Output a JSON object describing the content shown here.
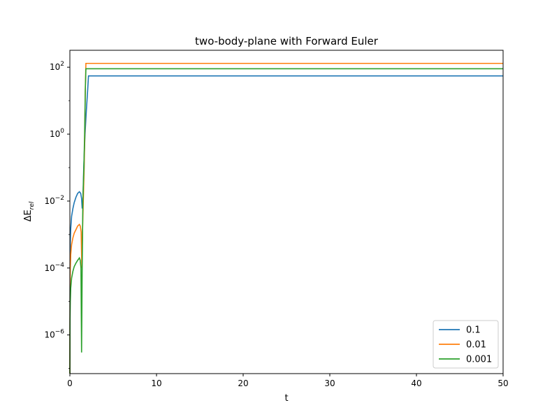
{
  "chart_data": {
    "type": "line",
    "title": "two-body-plane with Forward Euler",
    "xlabel": "t",
    "ylabel_main": "ΔE",
    "ylabel_sub": "rel",
    "xlim": [
      0,
      50
    ],
    "ylim": [
      7e-08,
      320.0
    ],
    "yscale": "log",
    "x_ticks": [
      0,
      10,
      20,
      30,
      40,
      50
    ],
    "x_tick_labels": [
      "0",
      "10",
      "20",
      "30",
      "40",
      "50"
    ],
    "y_ticks": [
      {
        "value": 1e-06,
        "base": "10",
        "exp": "−6"
      },
      {
        "value": 0.0001,
        "base": "10",
        "exp": "−4"
      },
      {
        "value": 0.01,
        "base": "10",
        "exp": "−2"
      },
      {
        "value": 1.0,
        "base": "10",
        "exp": "0"
      },
      {
        "value": 100.0,
        "base": "10",
        "exp": "2"
      }
    ],
    "legend_position": "lower-right",
    "grid": false,
    "series": [
      {
        "name": "0.1",
        "color": "#1f77b4",
        "points": [
          [
            0,
            7e-08
          ],
          [
            0.02,
            0.0001
          ],
          [
            0.05,
            0.0006
          ],
          [
            0.1,
            0.0015
          ],
          [
            0.2,
            0.0035
          ],
          [
            0.35,
            0.006
          ],
          [
            0.5,
            0.009
          ],
          [
            0.7,
            0.013
          ],
          [
            0.9,
            0.017
          ],
          [
            1.1,
            0.019
          ],
          [
            1.25,
            0.017
          ],
          [
            1.35,
            0.012
          ],
          [
            1.42,
            0.006
          ],
          [
            1.5,
            0.01
          ],
          [
            1.6,
            0.1
          ],
          [
            1.75,
            1.0
          ],
          [
            1.9,
            5
          ],
          [
            2.05,
            20
          ],
          [
            2.15,
            55
          ],
          [
            50,
            55
          ]
        ]
      },
      {
        "name": "0.01",
        "color": "#ff7f0e",
        "points": [
          [
            0,
            7e-08
          ],
          [
            0.02,
            3e-05
          ],
          [
            0.05,
            0.0001
          ],
          [
            0.1,
            0.00025
          ],
          [
            0.2,
            0.0005
          ],
          [
            0.35,
            0.0008
          ],
          [
            0.5,
            0.0011
          ],
          [
            0.7,
            0.0014
          ],
          [
            0.9,
            0.0018
          ],
          [
            1.1,
            0.002
          ],
          [
            1.2,
            0.0018
          ],
          [
            1.3,
            0.0012
          ],
          [
            1.38,
            0.0001
          ],
          [
            1.45,
            0.001
          ],
          [
            1.55,
            0.01
          ],
          [
            1.65,
            0.1
          ],
          [
            1.72,
            1.0
          ],
          [
            1.78,
            20
          ],
          [
            1.85,
            130
          ],
          [
            50,
            130
          ]
        ]
      },
      {
        "name": "0.001",
        "color": "#2ca02c",
        "points": [
          [
            0,
            7e-08
          ],
          [
            0.02,
            3e-06
          ],
          [
            0.05,
            1e-05
          ],
          [
            0.1,
            2.5e-05
          ],
          [
            0.2,
            5e-05
          ],
          [
            0.35,
            8e-05
          ],
          [
            0.5,
            0.00011
          ],
          [
            0.7,
            0.00014
          ],
          [
            0.9,
            0.00017
          ],
          [
            1.1,
            0.0002
          ],
          [
            1.2,
            0.00017
          ],
          [
            1.28,
            0.0001
          ],
          [
            1.35,
            3e-07
          ],
          [
            1.42,
            0.0001
          ],
          [
            1.5,
            0.01
          ],
          [
            1.62,
            0.1
          ],
          [
            1.7,
            1.0
          ],
          [
            1.78,
            20
          ],
          [
            1.85,
            90
          ],
          [
            50,
            90
          ]
        ]
      }
    ]
  }
}
